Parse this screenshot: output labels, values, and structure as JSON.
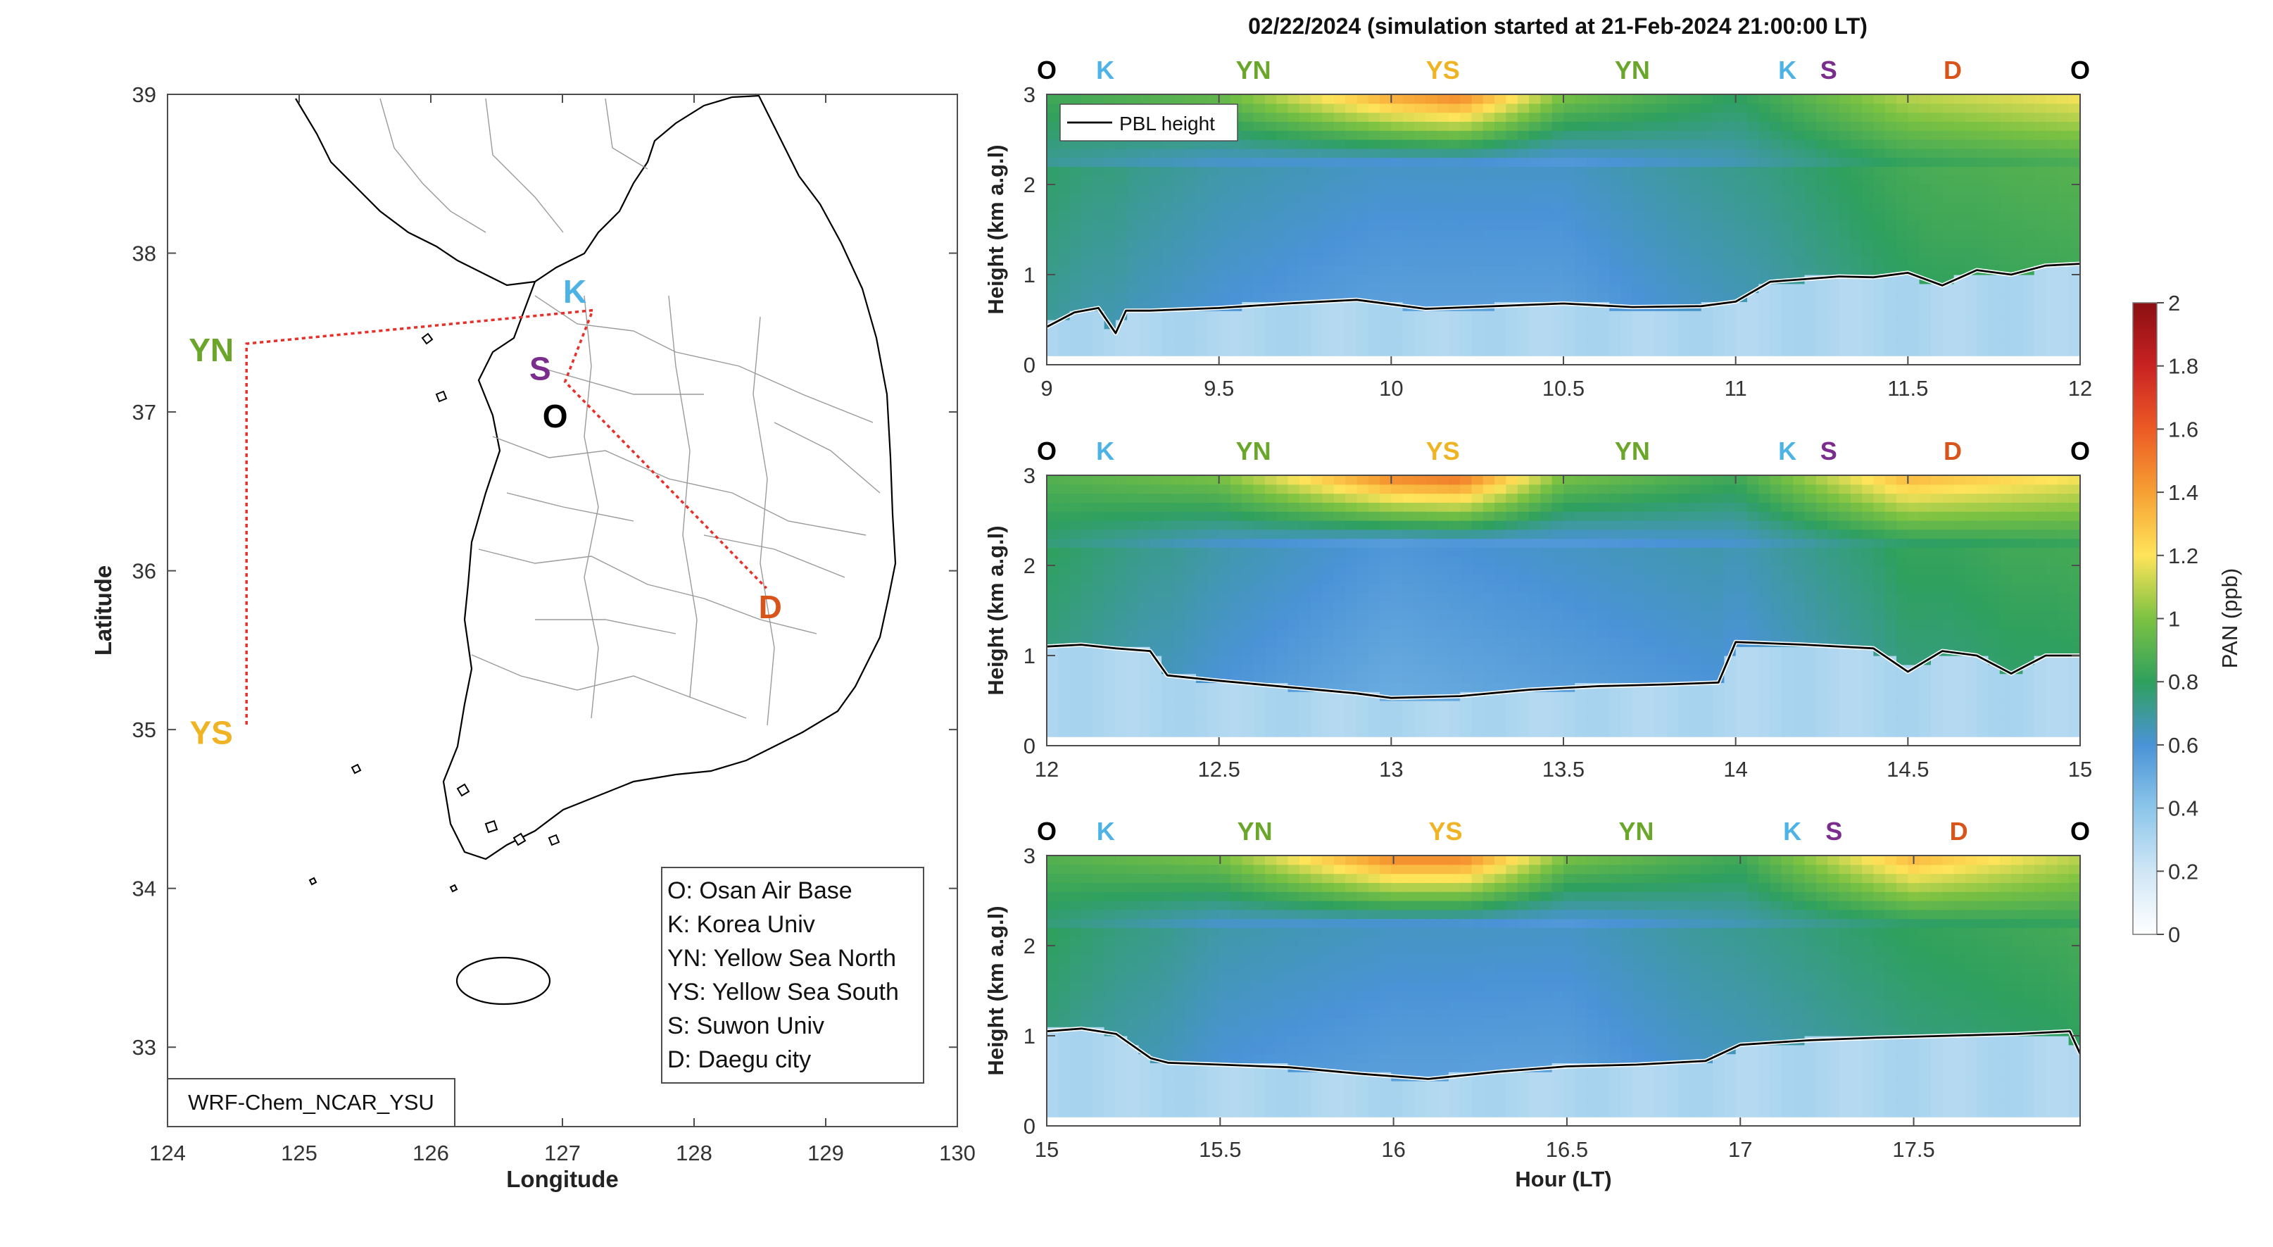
{
  "title": "02/22/2024 (simulation started at 21-Feb-2024 21:00:00 LT)",
  "colors": {
    "O": "#000000",
    "K": "#4db3e6",
    "YN": "#6aa62a",
    "YS": "#f0b324",
    "S": "#7b2d8e",
    "D": "#d9541a",
    "track": "#e8302a"
  },
  "map": {
    "xlabel": "Longitude",
    "ylabel": "Latitude",
    "xlim": [
      124,
      130
    ],
    "ylim": [
      32.5,
      39
    ],
    "xticks": [
      "124",
      "125",
      "126",
      "127",
      "128",
      "129",
      "130"
    ],
    "yticks": [
      "33",
      "34",
      "35",
      "36",
      "37",
      "38",
      "39"
    ],
    "model_label": "WRF-Chem_NCAR_YSU",
    "sites": [
      {
        "code": "K",
        "lon": 127.03,
        "lat": 37.59
      },
      {
        "code": "S",
        "lon": 126.97,
        "lat": 37.29
      },
      {
        "code": "O",
        "lon": 127.03,
        "lat": 37.09
      },
      {
        "code": "YN",
        "lon": 124.6,
        "lat": 37.43
      },
      {
        "code": "YS",
        "lon": 124.6,
        "lat": 35.02
      },
      {
        "code": "D",
        "lon": 128.6,
        "lat": 35.87
      }
    ],
    "legend": [
      "O: Osan Air Base",
      "K: Korea Univ",
      "YN: Yellow Sea North",
      "YS: Yellow Sea South",
      "S: Suwon Univ",
      "D: Daegu city"
    ]
  },
  "chart_data": [
    {
      "type": "heatmap",
      "variable": "PAN (ppb)",
      "xlabel": "",
      "ylabel": "Height (km a.g.l)",
      "xlim": [
        9,
        12
      ],
      "ylim": [
        0,
        3
      ],
      "xticks": [
        "9",
        "9.5",
        "10",
        "10.5",
        "11",
        "11.5",
        "12"
      ],
      "yticks": [
        "0",
        "1",
        "2",
        "3"
      ],
      "site_markers": [
        {
          "code": "O",
          "hour": 9.0
        },
        {
          "code": "K",
          "hour": 9.17
        },
        {
          "code": "YN",
          "hour": 9.6
        },
        {
          "code": "YS",
          "hour": 10.15
        },
        {
          "code": "YN",
          "hour": 10.7
        },
        {
          "code": "K",
          "hour": 11.15
        },
        {
          "code": "S",
          "hour": 11.27
        },
        {
          "code": "D",
          "hour": 11.63
        },
        {
          "code": "O",
          "hour": 12.0
        }
      ],
      "pbl_legend": "PBL height",
      "pbl_height_km": {
        "hour": [
          9.0,
          9.08,
          9.15,
          9.2,
          9.23,
          9.3,
          9.5,
          9.7,
          9.9,
          10.1,
          10.3,
          10.5,
          10.7,
          10.9,
          11.0,
          11.1,
          11.3,
          11.4,
          11.5,
          11.6,
          11.7,
          11.8,
          11.9,
          12.0
        ],
        "km": [
          0.42,
          0.58,
          0.63,
          0.35,
          0.6,
          0.6,
          0.63,
          0.68,
          0.72,
          0.62,
          0.65,
          0.68,
          0.64,
          0.65,
          0.7,
          0.92,
          0.98,
          0.97,
          1.02,
          0.88,
          1.05,
          1.0,
          1.1,
          1.12
        ]
      },
      "pan_surface_ppb": 0.3,
      "pan_midlevel_ppb": {
        "hour": [
          9.0,
          9.5,
          10.0,
          10.5,
          11.0,
          11.5,
          12.0
        ],
        "ppb": [
          0.7,
          0.6,
          0.55,
          0.55,
          0.65,
          0.8,
          0.85
        ]
      },
      "pan_top_ppb": {
        "hour": [
          9.0,
          9.5,
          10.0,
          10.2,
          10.5,
          11.0,
          11.5,
          12.0
        ],
        "ppb": [
          0.85,
          0.95,
          1.4,
          1.5,
          1.0,
          0.8,
          1.1,
          1.2
        ]
      }
    },
    {
      "type": "heatmap",
      "variable": "PAN (ppb)",
      "xlabel": "",
      "ylabel": "Height (km a.g.l)",
      "xlim": [
        12,
        15
      ],
      "ylim": [
        0,
        3
      ],
      "xticks": [
        "12",
        "12.5",
        "13",
        "13.5",
        "14",
        "14.5",
        "15"
      ],
      "yticks": [
        "0",
        "1",
        "2",
        "3"
      ],
      "site_markers": [
        {
          "code": "O",
          "hour": 12.0
        },
        {
          "code": "K",
          "hour": 12.17
        },
        {
          "code": "YN",
          "hour": 12.6
        },
        {
          "code": "YS",
          "hour": 13.15
        },
        {
          "code": "YN",
          "hour": 13.7
        },
        {
          "code": "K",
          "hour": 14.15
        },
        {
          "code": "S",
          "hour": 14.27
        },
        {
          "code": "D",
          "hour": 14.63
        },
        {
          "code": "O",
          "hour": 15.0
        }
      ],
      "pbl_height_km": {
        "hour": [
          12.0,
          12.1,
          12.2,
          12.3,
          12.35,
          12.5,
          12.7,
          12.9,
          13.0,
          13.2,
          13.4,
          13.6,
          13.8,
          13.95,
          14.0,
          14.2,
          14.4,
          14.5,
          14.6,
          14.7,
          14.8,
          14.9,
          15.0
        ],
        "km": [
          1.1,
          1.12,
          1.08,
          1.05,
          0.78,
          0.72,
          0.65,
          0.58,
          0.53,
          0.55,
          0.62,
          0.66,
          0.68,
          0.7,
          1.15,
          1.12,
          1.08,
          0.82,
          1.05,
          1.0,
          0.8,
          1.0,
          1.0
        ]
      },
      "pan_surface_ppb": 0.3,
      "pan_midlevel_ppb": {
        "hour": [
          12.0,
          12.5,
          13.0,
          13.5,
          14.0,
          14.5,
          15.0
        ],
        "ppb": [
          0.75,
          0.6,
          0.5,
          0.55,
          0.6,
          0.75,
          0.8
        ]
      },
      "pan_top_ppb": {
        "hour": [
          12.0,
          12.5,
          13.0,
          13.2,
          13.5,
          14.0,
          14.5,
          15.0
        ],
        "ppb": [
          0.9,
          1.0,
          1.5,
          1.55,
          1.0,
          0.85,
          1.35,
          1.2
        ]
      }
    },
    {
      "type": "heatmap",
      "variable": "PAN (ppb)",
      "xlabel": "Hour (LT)",
      "ylabel": "Height (km a.g.l)",
      "xlim": [
        15,
        17.98
      ],
      "ylim": [
        0,
        3
      ],
      "xticks": [
        "15",
        "15.5",
        "16",
        "16.5",
        "17",
        "17.5"
      ],
      "yticks": [
        "0",
        "1",
        "2",
        "3"
      ],
      "site_markers": [
        {
          "code": "O",
          "hour": 15.0
        },
        {
          "code": "K",
          "hour": 15.17
        },
        {
          "code": "YN",
          "hour": 15.6
        },
        {
          "code": "YS",
          "hour": 16.15
        },
        {
          "code": "YN",
          "hour": 16.7
        },
        {
          "code": "K",
          "hour": 17.15
        },
        {
          "code": "S",
          "hour": 17.27
        },
        {
          "code": "D",
          "hour": 17.63
        },
        {
          "code": "O",
          "hour": 17.98
        }
      ],
      "pbl_height_km": {
        "hour": [
          15.0,
          15.1,
          15.2,
          15.3,
          15.35,
          15.5,
          15.7,
          15.9,
          16.1,
          16.3,
          16.5,
          16.7,
          16.9,
          17.0,
          17.2,
          17.4,
          17.6,
          17.8,
          17.95,
          17.98
        ],
        "km": [
          1.05,
          1.08,
          1.02,
          0.75,
          0.7,
          0.68,
          0.65,
          0.58,
          0.52,
          0.6,
          0.66,
          0.68,
          0.72,
          0.9,
          0.95,
          0.98,
          1.0,
          1.02,
          1.05,
          0.8
        ]
      },
      "pan_surface_ppb": 0.3,
      "pan_midlevel_ppb": {
        "hour": [
          15.0,
          15.5,
          16.0,
          16.5,
          17.0,
          17.5,
          17.98
        ],
        "ppb": [
          0.75,
          0.6,
          0.55,
          0.55,
          0.65,
          0.75,
          0.8
        ]
      },
      "pan_top_ppb": {
        "hour": [
          15.0,
          15.5,
          16.0,
          16.2,
          16.5,
          17.0,
          17.5,
          17.98
        ],
        "ppb": [
          0.9,
          1.0,
          1.5,
          1.5,
          1.0,
          0.85,
          1.35,
          1.1
        ]
      }
    }
  ],
  "colorbar": {
    "label": "PAN (ppb)",
    "ticks": [
      "0",
      "0.2",
      "0.4",
      "0.6",
      "0.8",
      "1",
      "1.2",
      "1.4",
      "1.6",
      "1.8",
      "2"
    ],
    "range": [
      0,
      2
    ]
  }
}
